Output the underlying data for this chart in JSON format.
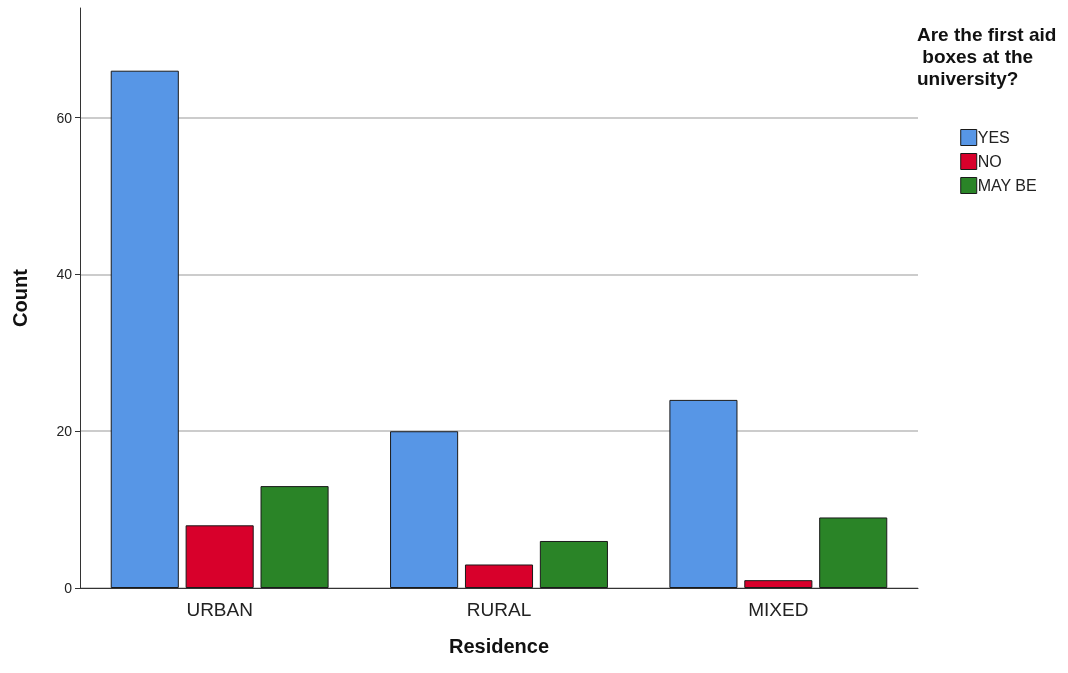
{
  "chart_data": {
    "type": "bar",
    "xlabel": "Residence",
    "ylabel": "Count",
    "legend_title": "Are the first aid boxes at the university?",
    "categories": [
      "URBAN",
      "RURAL",
      "MIXED"
    ],
    "series": [
      {
        "name": "YES",
        "color": "#5796e6",
        "values": [
          66,
          20,
          24
        ]
      },
      {
        "name": "NO",
        "color": "#d8002b",
        "values": [
          8,
          3,
          1
        ]
      },
      {
        "name": "MAY BE",
        "color": "#2a8427",
        "values": [
          13,
          6,
          9
        ]
      }
    ],
    "ylim": [
      0,
      74
    ],
    "yticks": [
      0,
      20,
      40,
      60
    ],
    "grid": "y",
    "legend": "top right"
  }
}
